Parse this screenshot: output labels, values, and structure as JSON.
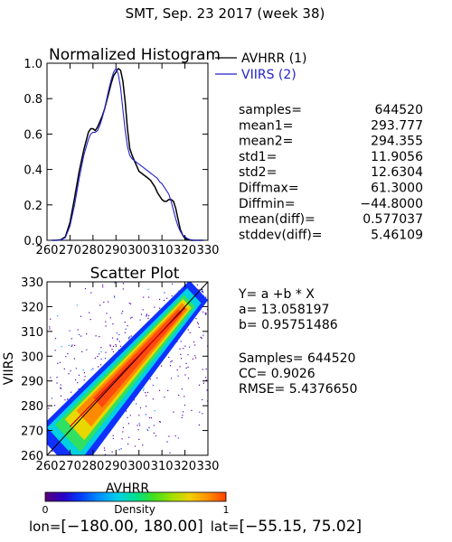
{
  "header": {
    "title": "SMT,  Sep. 23 2017 (week 38)"
  },
  "footer": {
    "lon_label": "lon=",
    "lon_range": "[−180.00, 180.00]",
    "lat_label": "lat=",
    "lat_range": "[−55.15, 75.02]"
  },
  "colors": {
    "avhrr": "#000000",
    "viirs": "#2222cc",
    "fit_line": "#cc0000"
  },
  "stats": {
    "rows": [
      {
        "label": "samples=",
        "value": "644520"
      },
      {
        "label": "mean1=",
        "value": "293.777"
      },
      {
        "label": "mean2=",
        "value": "294.355"
      },
      {
        "label": "std1=",
        "value": "11.9056"
      },
      {
        "label": "std2=",
        "value": "12.6304"
      },
      {
        "label": "Diffmax=",
        "value": "61.3000"
      },
      {
        "label": "Diffmin=",
        "value": "−44.8000"
      },
      {
        "label": "mean(diff)=",
        "value": "0.577037"
      },
      {
        "label": "stddev(diff)=",
        "value": "5.46109"
      }
    ]
  },
  "regression": {
    "equation": "Y= a +b * X",
    "a": "a= 13.058197",
    "b": "b= 0.95751486",
    "samples": "Samples= 644520",
    "cc": "CC=  0.9026",
    "rmse": "RMSE= 5.4376650"
  },
  "colorbar": {
    "label": "Density",
    "min_label": "0",
    "max_label": "1",
    "colors": [
      "#5a007a",
      "#2a00c8",
      "#0040ff",
      "#0090ff",
      "#00d0e8",
      "#00e090",
      "#40e020",
      "#a0e000",
      "#f0d000",
      "#ff9000",
      "#ff4000"
    ]
  },
  "chart_data": [
    {
      "type": "line",
      "title": "Normalized Histogram",
      "xlim": [
        260,
        330
      ],
      "ylim": [
        0,
        1
      ],
      "x_ticks": [
        "260",
        "270",
        "280",
        "290",
        "300",
        "310",
        "320",
        "330"
      ],
      "x_tick_values": [
        260,
        270,
        280,
        290,
        300,
        310,
        320,
        330
      ],
      "y_ticks": [
        "0.0",
        "0.2",
        "0.4",
        "0.6",
        "0.8",
        "1.0"
      ],
      "y_tick_values": [
        0,
        0.2,
        0.4,
        0.6,
        0.8,
        1.0
      ],
      "legend_position": "top-right",
      "series": [
        {
          "name": "AVHRR (1)",
          "color": "#000000",
          "x": [
            262,
            264,
            266,
            268,
            270,
            272,
            274,
            276,
            278,
            279,
            280,
            281,
            282,
            283,
            284,
            285,
            286,
            287,
            288,
            289,
            290,
            291,
            292,
            293,
            294,
            295,
            296,
            297,
            298,
            299,
            300,
            301,
            302,
            303,
            304,
            305,
            306,
            307,
            308,
            309,
            310,
            311,
            312,
            313,
            314,
            315,
            316,
            317,
            318,
            319,
            320,
            321,
            322,
            323,
            324,
            326,
            328
          ],
          "y": [
            0,
            0,
            0.003,
            0.02,
            0.1,
            0.24,
            0.39,
            0.51,
            0.61,
            0.63,
            0.63,
            0.62,
            0.64,
            0.67,
            0.7,
            0.74,
            0.79,
            0.84,
            0.89,
            0.93,
            0.95,
            0.97,
            0.96,
            0.9,
            0.78,
            0.63,
            0.52,
            0.48,
            0.45,
            0.42,
            0.39,
            0.38,
            0.37,
            0.36,
            0.35,
            0.34,
            0.32,
            0.3,
            0.27,
            0.25,
            0.23,
            0.22,
            0.22,
            0.23,
            0.23,
            0.22,
            0.18,
            0.12,
            0.06,
            0.03,
            0.01,
            0.005,
            0.002,
            0,
            0,
            0,
            0
          ]
        },
        {
          "name": "VIIRS (2)",
          "color": "#2222cc",
          "x": [
            262,
            264,
            266,
            268,
            270,
            272,
            274,
            276,
            278,
            279,
            280,
            281,
            282,
            283,
            284,
            285,
            286,
            287,
            288,
            289,
            290,
            291,
            292,
            293,
            294,
            295,
            296,
            297,
            298,
            299,
            300,
            301,
            302,
            303,
            304,
            305,
            306,
            307,
            308,
            309,
            310,
            311,
            312,
            313,
            314,
            315,
            316,
            317,
            318,
            319,
            320,
            321,
            322,
            323,
            324,
            326,
            328
          ],
          "y": [
            0,
            0,
            0.002,
            0.015,
            0.08,
            0.2,
            0.35,
            0.48,
            0.57,
            0.6,
            0.61,
            0.61,
            0.62,
            0.65,
            0.69,
            0.74,
            0.8,
            0.86,
            0.91,
            0.95,
            0.97,
            0.94,
            0.86,
            0.74,
            0.62,
            0.53,
            0.48,
            0.46,
            0.45,
            0.44,
            0.43,
            0.42,
            0.41,
            0.4,
            0.39,
            0.38,
            0.37,
            0.36,
            0.35,
            0.33,
            0.32,
            0.3,
            0.28,
            0.26,
            0.22,
            0.17,
            0.12,
            0.08,
            0.05,
            0.03,
            0.02,
            0.01,
            0.005,
            0.002,
            0,
            0,
            0
          ]
        }
      ]
    },
    {
      "type": "heatmap",
      "title": "Scatter Plot",
      "xlabel": "AVHRR",
      "ylabel": "VIIRS",
      "xlim": [
        260,
        330
      ],
      "ylim": [
        260,
        330
      ],
      "x_ticks": [
        "260",
        "270",
        "280",
        "290",
        "300",
        "310",
        "320",
        "330"
      ],
      "x_tick_values": [
        260,
        270,
        280,
        290,
        300,
        310,
        320,
        330
      ],
      "y_ticks": [
        "260",
        "270",
        "280",
        "290",
        "300",
        "310",
        "320",
        "330"
      ],
      "y_tick_values": [
        260,
        270,
        280,
        290,
        300,
        310,
        320,
        330
      ],
      "diagonal": [
        [
          260,
          260
        ],
        [
          330,
          330
        ]
      ],
      "fit_line": {
        "intercept": 13.058197,
        "slope": 0.95751486,
        "x_range": [
          270,
          320
        ]
      }
    }
  ]
}
